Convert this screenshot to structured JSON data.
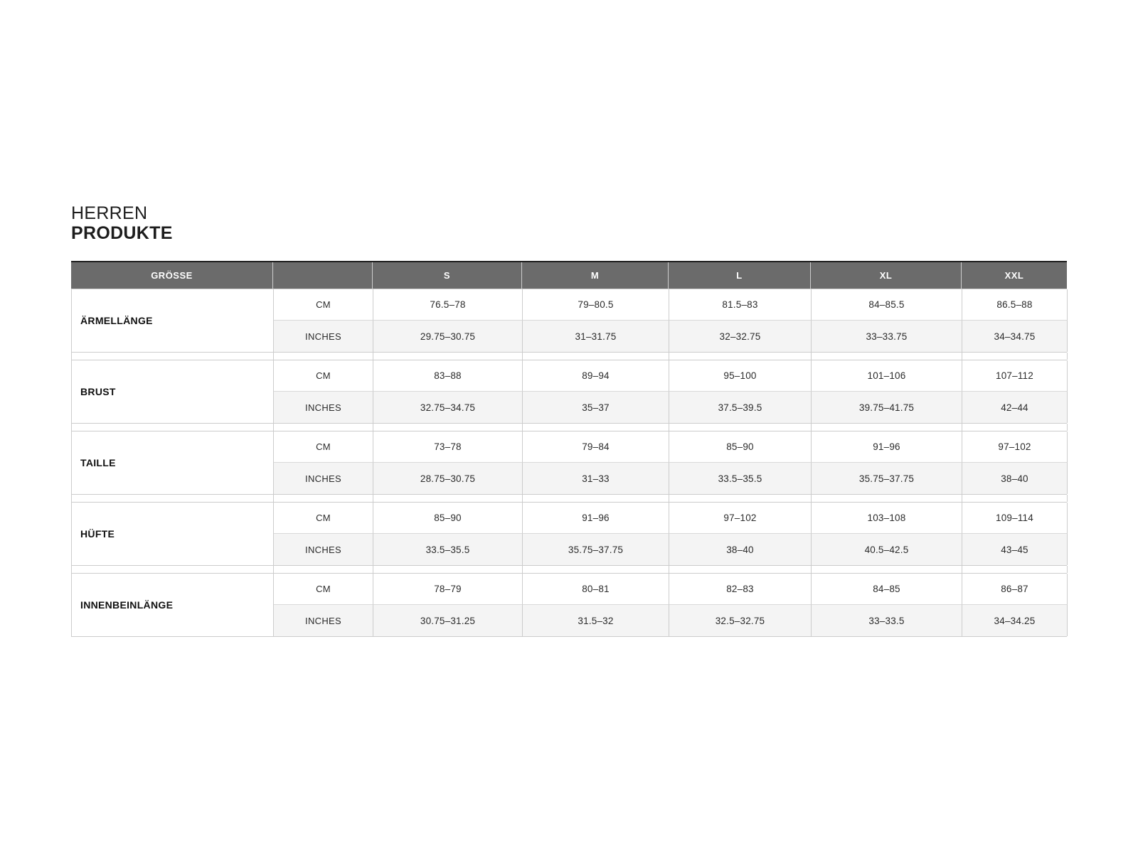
{
  "page": {
    "title_line1": "HERREN",
    "title_line2": "PRODUKTE"
  },
  "colors": {
    "header_bg": "#6b6b6b",
    "header_top_border": "#1f1f1f",
    "alt_row_bg": "#f4f4f4",
    "grid_border": "#cccccc",
    "text": "#2b2b2b"
  },
  "table": {
    "header": [
      "GRÖSSE",
      "",
      "S",
      "M",
      "L",
      "XL",
      "XXL"
    ],
    "groups": [
      {
        "label": "ÄRMELLÄNGE",
        "rows": [
          {
            "unit": "CM",
            "values": [
              "76.5–78",
              "79–80.5",
              "81.5–83",
              "84–85.5",
              "86.5–88"
            ]
          },
          {
            "unit": "INCHES",
            "values": [
              "29.75–30.75",
              "31–31.75",
              "32–32.75",
              "33–33.75",
              "34–34.75"
            ]
          }
        ]
      },
      {
        "label": "BRUST",
        "rows": [
          {
            "unit": "CM",
            "values": [
              "83–88",
              "89–94",
              "95–100",
              "101–106",
              "107–112"
            ]
          },
          {
            "unit": "INCHES",
            "values": [
              "32.75–34.75",
              "35–37",
              "37.5–39.5",
              "39.75–41.75",
              "42–44"
            ]
          }
        ]
      },
      {
        "label": "TAILLE",
        "rows": [
          {
            "unit": "CM",
            "values": [
              "73–78",
              "79–84",
              "85–90",
              "91–96",
              "97–102"
            ]
          },
          {
            "unit": "INCHES",
            "values": [
              "28.75–30.75",
              "31–33",
              "33.5–35.5",
              "35.75–37.75",
              "38–40"
            ]
          }
        ]
      },
      {
        "label": "HÜFTE",
        "rows": [
          {
            "unit": "CM",
            "values": [
              "85–90",
              "91–96",
              "97–102",
              "103–108",
              "109–114"
            ]
          },
          {
            "unit": "INCHES",
            "values": [
              "33.5–35.5",
              "35.75–37.75",
              "38–40",
              "40.5–42.5",
              "43–45"
            ]
          }
        ]
      },
      {
        "label": "INNENBEINLÄNGE",
        "rows": [
          {
            "unit": "CM",
            "values": [
              "78–79",
              "80–81",
              "82–83",
              "84–85",
              "86–87"
            ]
          },
          {
            "unit": "INCHES",
            "values": [
              "30.75–31.25",
              "31.5–32",
              "32.5–32.75",
              "33–33.5",
              "34–34.25"
            ]
          }
        ]
      }
    ]
  }
}
